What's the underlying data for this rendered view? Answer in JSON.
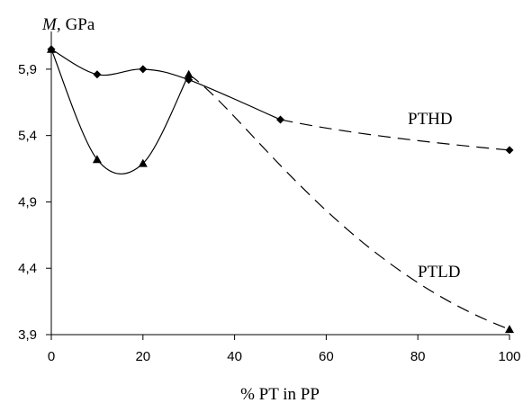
{
  "chart_data": {
    "type": "line",
    "ylabel_symbol": "M,",
    "ylabel_unit": "GPa",
    "xlabel": "% PT in PP",
    "xlim": [
      0,
      100
    ],
    "ylim": [
      3.9,
      6.15
    ],
    "xticks": [
      0,
      20,
      40,
      60,
      80,
      100
    ],
    "yticks": [
      3.9,
      4.4,
      4.9,
      5.4,
      5.9
    ],
    "ytick_labels": [
      "3,9",
      "4,4",
      "4,9",
      "5,4",
      "5,9"
    ],
    "grid": false,
    "series": [
      {
        "name": "PTHD",
        "marker": "diamond",
        "points": [
          {
            "x": 0,
            "y": 6.05
          },
          {
            "x": 10,
            "y": 5.86
          },
          {
            "x": 20,
            "y": 5.9
          },
          {
            "x": 30,
            "y": 5.82
          },
          {
            "x": 50,
            "y": 5.52
          },
          {
            "x": 100,
            "y": 5.29
          }
        ],
        "solid_until_x": 50
      },
      {
        "name": "PTLD",
        "marker": "triangle",
        "points": [
          {
            "x": 0,
            "y": 6.05
          },
          {
            "x": 10,
            "y": 5.22
          },
          {
            "x": 20,
            "y": 5.19
          },
          {
            "x": 30,
            "y": 5.86
          },
          {
            "x": 100,
            "y": 3.94
          }
        ],
        "solid_until_x": 30
      }
    ]
  }
}
